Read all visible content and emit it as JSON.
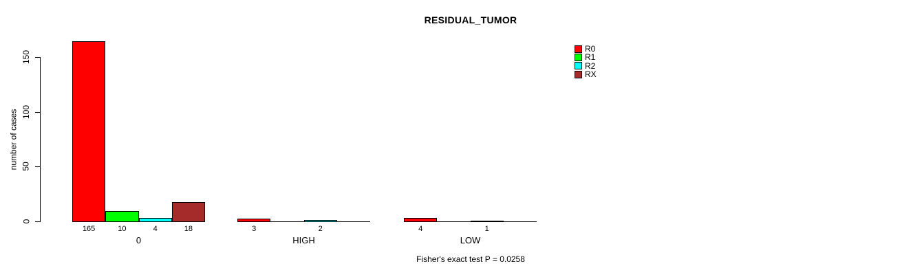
{
  "chart_data": {
    "type": "bar",
    "title": "RESIDUAL_TUMOR",
    "xlabel": "",
    "ylabel": "number of cases",
    "categories": [
      "0",
      "HIGH",
      "LOW"
    ],
    "series": [
      {
        "name": "R0",
        "color": "#FF0000",
        "values": [
          165,
          3,
          4
        ]
      },
      {
        "name": "R1",
        "color": "#00FF00",
        "values": [
          10,
          0,
          0
        ]
      },
      {
        "name": "R2",
        "color": "#00FFFF",
        "values": [
          4,
          2,
          1
        ]
      },
      {
        "name": "RX",
        "color": "#A52A2A",
        "values": [
          18,
          0,
          0
        ]
      }
    ],
    "bar_value_labels": [
      [
        165,
        10,
        4,
        18
      ],
      [
        3,
        0,
        2,
        0
      ],
      [
        4,
        0,
        1,
        0
      ]
    ],
    "yticks": [
      0,
      50,
      100,
      150
    ],
    "ylim": [
      0,
      165
    ],
    "grid": false,
    "legend_position": "top-right",
    "legend_border": false,
    "annotation": "Fisher's exact test P = 0.0258"
  }
}
